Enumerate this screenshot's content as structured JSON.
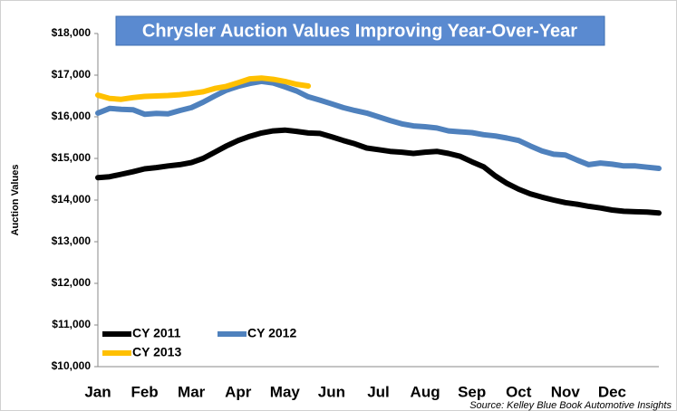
{
  "chart_data": {
    "type": "line",
    "title": "Chrysler Auction Values Improving Year-Over-Year",
    "y_label": "Auction Values",
    "source": "Source: Kelley Blue Book Automotive Insights",
    "categories": [
      "Jan",
      null,
      null,
      null,
      "Feb",
      null,
      null,
      null,
      "Mar",
      null,
      null,
      null,
      "Apr",
      null,
      null,
      null,
      "May",
      null,
      null,
      null,
      "Jun",
      null,
      null,
      null,
      "Jul",
      null,
      null,
      null,
      "Aug",
      null,
      null,
      null,
      "Sep",
      null,
      null,
      null,
      "Oct",
      null,
      null,
      null,
      "Nov",
      null,
      null,
      null,
      "Dec",
      null,
      null,
      null,
      null
    ],
    "series": [
      {
        "name": "CY 2011",
        "color": "#000000",
        "values": [
          14540,
          14560,
          14620,
          14680,
          14750,
          14780,
          14820,
          14850,
          14900,
          15000,
          15150,
          15300,
          15430,
          15530,
          15610,
          15660,
          15680,
          15650,
          15610,
          15600,
          15520,
          15430,
          15350,
          15250,
          15210,
          15170,
          15150,
          15120,
          15150,
          15170,
          15120,
          15050,
          14920,
          14800,
          14580,
          14400,
          14260,
          14150,
          14070,
          14000,
          13940,
          13900,
          13850,
          13810,
          13760,
          13730,
          13720,
          13710,
          13690
        ]
      },
      {
        "name": "CY 2012",
        "color": "#4f81bd",
        "values": [
          16090,
          16200,
          16180,
          16170,
          16060,
          16080,
          16070,
          16150,
          16220,
          16350,
          16500,
          16640,
          16730,
          16800,
          16850,
          16810,
          16720,
          16620,
          16480,
          16400,
          16310,
          16220,
          16150,
          16090,
          16000,
          15910,
          15830,
          15780,
          15760,
          15730,
          15660,
          15640,
          15620,
          15570,
          15540,
          15490,
          15430,
          15300,
          15180,
          15100,
          15080,
          14960,
          14850,
          14890,
          14860,
          14820,
          14820,
          14790,
          14760
        ]
      },
      {
        "name": "CY 2013",
        "color": "#ffc000",
        "values": [
          16520,
          16440,
          16420,
          16460,
          16490,
          16500,
          16510,
          16530,
          16560,
          16600,
          16680,
          16730,
          16820,
          16910,
          16930,
          16900,
          16850,
          16780,
          16740,
          null,
          null,
          null,
          null,
          null,
          null,
          null,
          null,
          null,
          null,
          null,
          null,
          null,
          null,
          null,
          null,
          null,
          null,
          null,
          null,
          null,
          null,
          null,
          null,
          null,
          null,
          null,
          null,
          null,
          null
        ]
      }
    ],
    "ylim": [
      10000,
      18000
    ],
    "yticks": [
      {
        "value": 10000,
        "label": "$10,000"
      },
      {
        "value": 11000,
        "label": "$11,000"
      },
      {
        "value": 12000,
        "label": "$12,000"
      },
      {
        "value": 13000,
        "label": "$13,000"
      },
      {
        "value": 14000,
        "label": "$14,000"
      },
      {
        "value": 15000,
        "label": "$15,000"
      },
      {
        "value": 16000,
        "label": "$16,000"
      },
      {
        "value": 17000,
        "label": "$17,000"
      },
      {
        "value": 18000,
        "label": "$18,000"
      }
    ],
    "grid": false
  }
}
